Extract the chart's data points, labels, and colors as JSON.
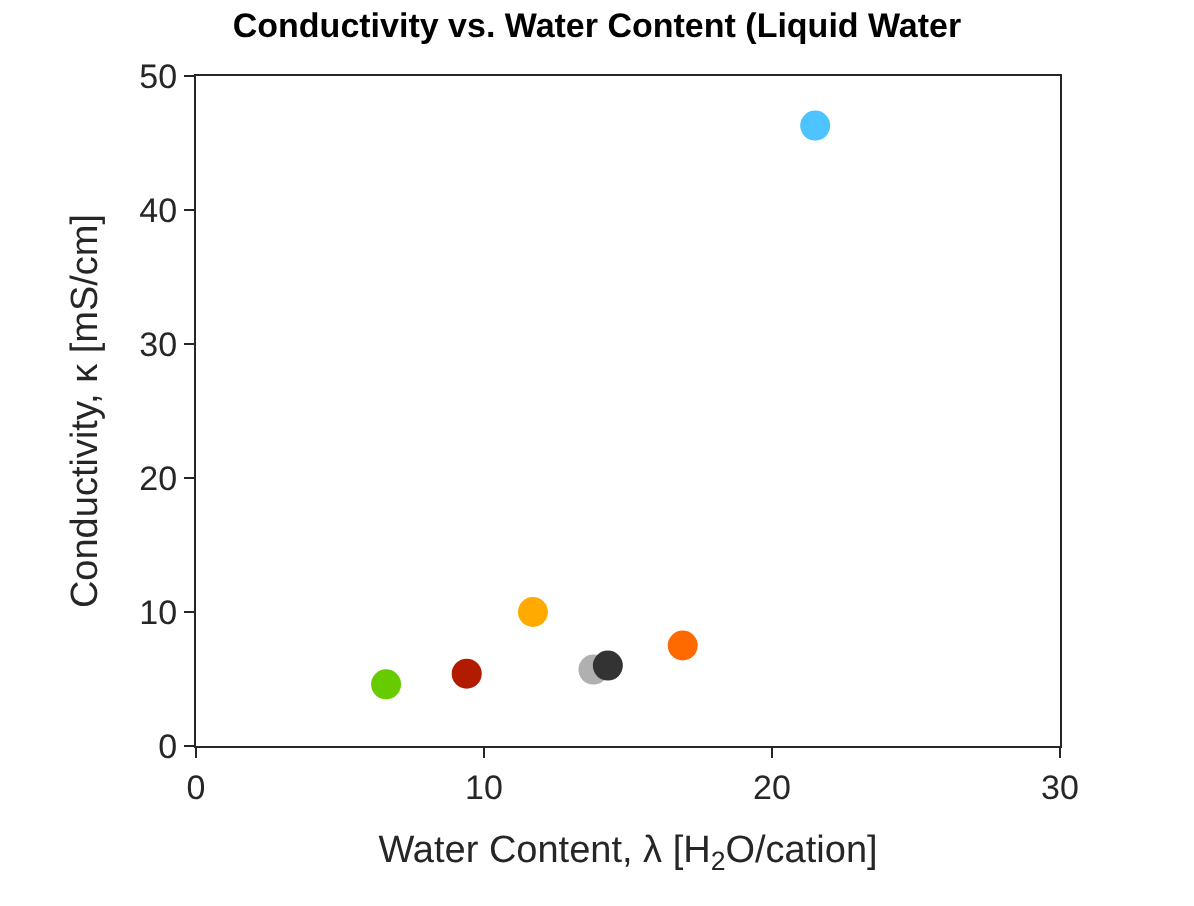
{
  "chart_data": {
    "type": "scatter",
    "title": "Conductivity vs. Water Content (Liquid Water",
    "xlabel": "Water Content, λ [H$_{2}$O/cation]",
    "ylabel": "Conductivity, κ [mS/cm]",
    "x": [
      6.6,
      9.4,
      11.7,
      13.8,
      14.3,
      16.9,
      21.5
    ],
    "values": [
      4.6,
      5.4,
      10.0,
      5.7,
      6.0,
      7.5,
      46.3
    ],
    "colors": [
      "#66cc00",
      "#b31b00",
      "#ffaa00",
      "#b0b0b0",
      "#333333",
      "#ff6a00",
      "#4dc3ff"
    ],
    "xlim": [
      0,
      30
    ],
    "xticks": [
      0,
      10,
      20,
      30
    ],
    "ylim": [
      0,
      50
    ],
    "yticks": [
      0,
      10,
      20,
      30,
      40,
      50
    ],
    "marker": "circle",
    "legend": false
  }
}
